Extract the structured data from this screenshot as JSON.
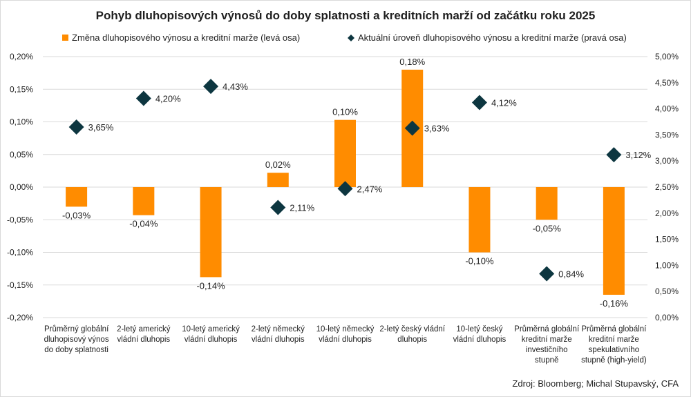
{
  "chart_data": {
    "type": "bar",
    "title": "Pohyb dluhopisových výnosů do doby splatnosti a kreditních marží od začátku roku 2025",
    "source": "Zdroj: Bloomberg; Michal Stupavský, CFA",
    "categories": [
      [
        "Průměrný globální",
        "dluhopisový výnos",
        "do doby splatnosti"
      ],
      [
        "2-letý americký",
        "vládní dluhopis"
      ],
      [
        "10-letý americký",
        "vládní dluhopis"
      ],
      [
        "2-letý německý",
        "vládní dluhopis"
      ],
      [
        "10-letý německý",
        "vládní dluhopis"
      ],
      [
        "2-letý český vládní",
        "dluhopis"
      ],
      [
        "10-letý český",
        "vládní dluhopis"
      ],
      [
        "Průměrná globální",
        "kreditní marže",
        "investičního",
        "stupně"
      ],
      [
        "Průměrná globální",
        "kreditní marže",
        "spekulativního",
        "stupně (high-yield)"
      ]
    ],
    "series": [
      {
        "name": "Změna dluhopisového výnosu a kreditní marže (levá osa)",
        "kind": "bar",
        "axis": "left",
        "color": "#ff8c00",
        "values": [
          -0.03,
          -0.043,
          -0.138,
          0.022,
          0.103,
          0.18,
          -0.1,
          -0.05,
          -0.165
        ],
        "labels": [
          "-0,03%",
          "-0,04%",
          "-0,14%",
          "0,02%",
          "0,10%",
          "0,18%",
          "-0,10%",
          "-0,05%",
          "-0,16%"
        ]
      },
      {
        "name": "Aktuální úroveň dluhopisového výnosu a kreditní marže (pravá osa)",
        "kind": "marker",
        "marker": "diamond",
        "axis": "right",
        "color": "#0d3640",
        "values": [
          3.65,
          4.2,
          4.43,
          2.11,
          2.47,
          3.63,
          4.12,
          0.84,
          3.12
        ],
        "labels": [
          "3,65%",
          "4,20%",
          "4,43%",
          "2,11%",
          "2,47%",
          "3,63%",
          "4,12%",
          "0,84%",
          "3,12%"
        ]
      }
    ],
    "y_left": {
      "min": -0.2,
      "max": 0.2,
      "step": 0.05,
      "tick_labels": [
        "-0,20%",
        "-0,15%",
        "-0,10%",
        "-0,05%",
        "0,00%",
        "0,05%",
        "0,10%",
        "0,15%",
        "0,20%"
      ]
    },
    "y_right": {
      "min": 0,
      "max": 5,
      "step": 0.5,
      "tick_labels": [
        "0,00%",
        "0,50%",
        "1,00%",
        "1,50%",
        "2,00%",
        "2,50%",
        "3,00%",
        "3,50%",
        "4,00%",
        "4,50%",
        "5,00%"
      ]
    },
    "grid": true,
    "legend_position": "top"
  }
}
